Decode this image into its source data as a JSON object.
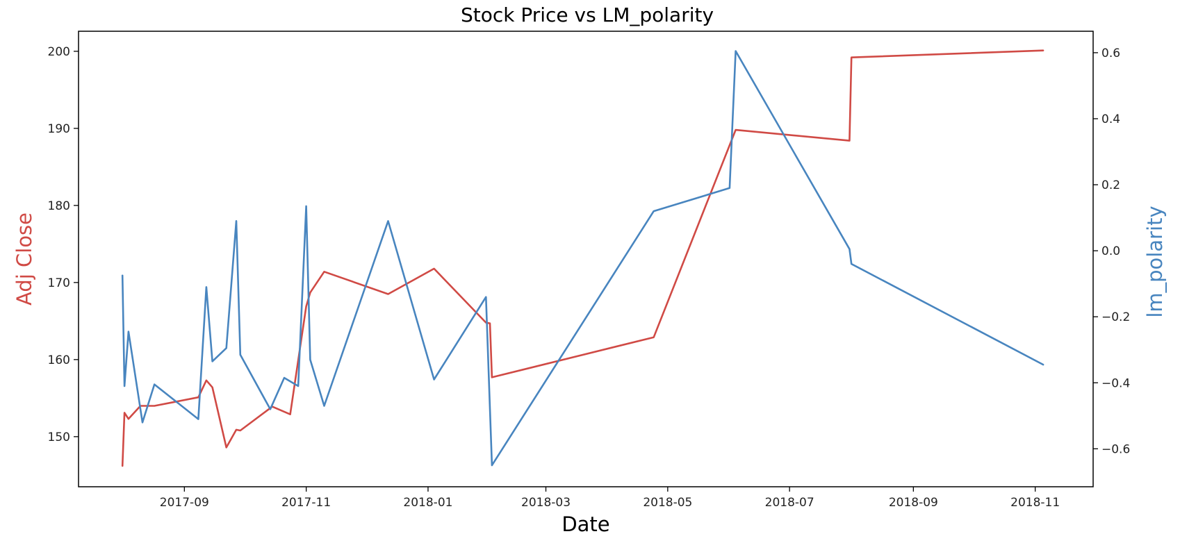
{
  "chart_data": {
    "type": "line",
    "title": "Stock Price vs LM_polarity",
    "xlabel": "Date",
    "ylabel_left": "Adj Close",
    "ylabel_right": "lm_polarity",
    "xlim": [
      "2017-07-10",
      "2018-11-30"
    ],
    "ylim_left": [
      143.5,
      202.6
    ],
    "ylim_right": [
      -0.715,
      0.665
    ],
    "x_ticks": [
      "2017-09",
      "2017-11",
      "2018-01",
      "2018-03",
      "2018-05",
      "2018-07",
      "2018-09",
      "2018-11"
    ],
    "y_ticks_left": [
      "150",
      "160",
      "170",
      "180",
      "190",
      "200"
    ],
    "y_ticks_right": [
      "−0.6",
      "−0.4",
      "−0.2",
      "0.0",
      "0.2",
      "0.4",
      "0.6"
    ],
    "grid": false,
    "series": [
      {
        "name": "Adj Close",
        "axis": "left",
        "color": "#d04a45",
        "points": [
          [
            "2017-08-01",
            146.2
          ],
          [
            "2017-08-02",
            153.1
          ],
          [
            "2017-08-04",
            152.3
          ],
          [
            "2017-08-10",
            154.0
          ],
          [
            "2017-08-17",
            154.0
          ],
          [
            "2017-09-08",
            155.1
          ],
          [
            "2017-09-12",
            157.3
          ],
          [
            "2017-09-15",
            156.4
          ],
          [
            "2017-09-22",
            148.6
          ],
          [
            "2017-09-27",
            150.9
          ],
          [
            "2017-09-29",
            150.8
          ],
          [
            "2017-10-15",
            153.9
          ],
          [
            "2017-10-24",
            152.9
          ],
          [
            "2017-11-01",
            166.9
          ],
          [
            "2017-11-03",
            168.7
          ],
          [
            "2017-11-10",
            171.4
          ],
          [
            "2017-12-12",
            168.5
          ],
          [
            "2018-01-04",
            171.8
          ],
          [
            "2018-01-30",
            164.8
          ],
          [
            "2018-02-01",
            164.7
          ],
          [
            "2018-02-02",
            157.7
          ],
          [
            "2018-04-24",
            162.9
          ],
          [
            "2018-06-04",
            189.8
          ],
          [
            "2018-07-31",
            188.4
          ],
          [
            "2018-08-01",
            199.2
          ],
          [
            "2018-11-05",
            200.1
          ]
        ]
      },
      {
        "name": "lm_polarity",
        "axis": "right",
        "color": "#4885bf",
        "points": [
          [
            "2017-08-01",
            -0.075
          ],
          [
            "2017-08-02",
            -0.41
          ],
          [
            "2017-08-04",
            -0.245
          ],
          [
            "2017-08-11",
            -0.52
          ],
          [
            "2017-08-17",
            -0.405
          ],
          [
            "2017-09-08",
            -0.51
          ],
          [
            "2017-09-12",
            -0.11
          ],
          [
            "2017-09-15",
            -0.335
          ],
          [
            "2017-09-22",
            -0.295
          ],
          [
            "2017-09-27",
            0.09
          ],
          [
            "2017-09-29",
            -0.315
          ],
          [
            "2017-10-14",
            -0.48
          ],
          [
            "2017-10-21",
            -0.385
          ],
          [
            "2017-10-28",
            -0.41
          ],
          [
            "2017-11-01",
            0.135
          ],
          [
            "2017-11-03",
            -0.33
          ],
          [
            "2017-11-10",
            -0.47
          ],
          [
            "2017-12-12",
            0.09
          ],
          [
            "2018-01-04",
            -0.39
          ],
          [
            "2018-01-30",
            -0.14
          ],
          [
            "2018-02-02",
            -0.65
          ],
          [
            "2018-04-24",
            0.12
          ],
          [
            "2018-06-01",
            0.19
          ],
          [
            "2018-06-04",
            0.605
          ],
          [
            "2018-07-31",
            0.005
          ],
          [
            "2018-08-01",
            -0.04
          ],
          [
            "2018-11-05",
            -0.345
          ]
        ]
      }
    ]
  }
}
